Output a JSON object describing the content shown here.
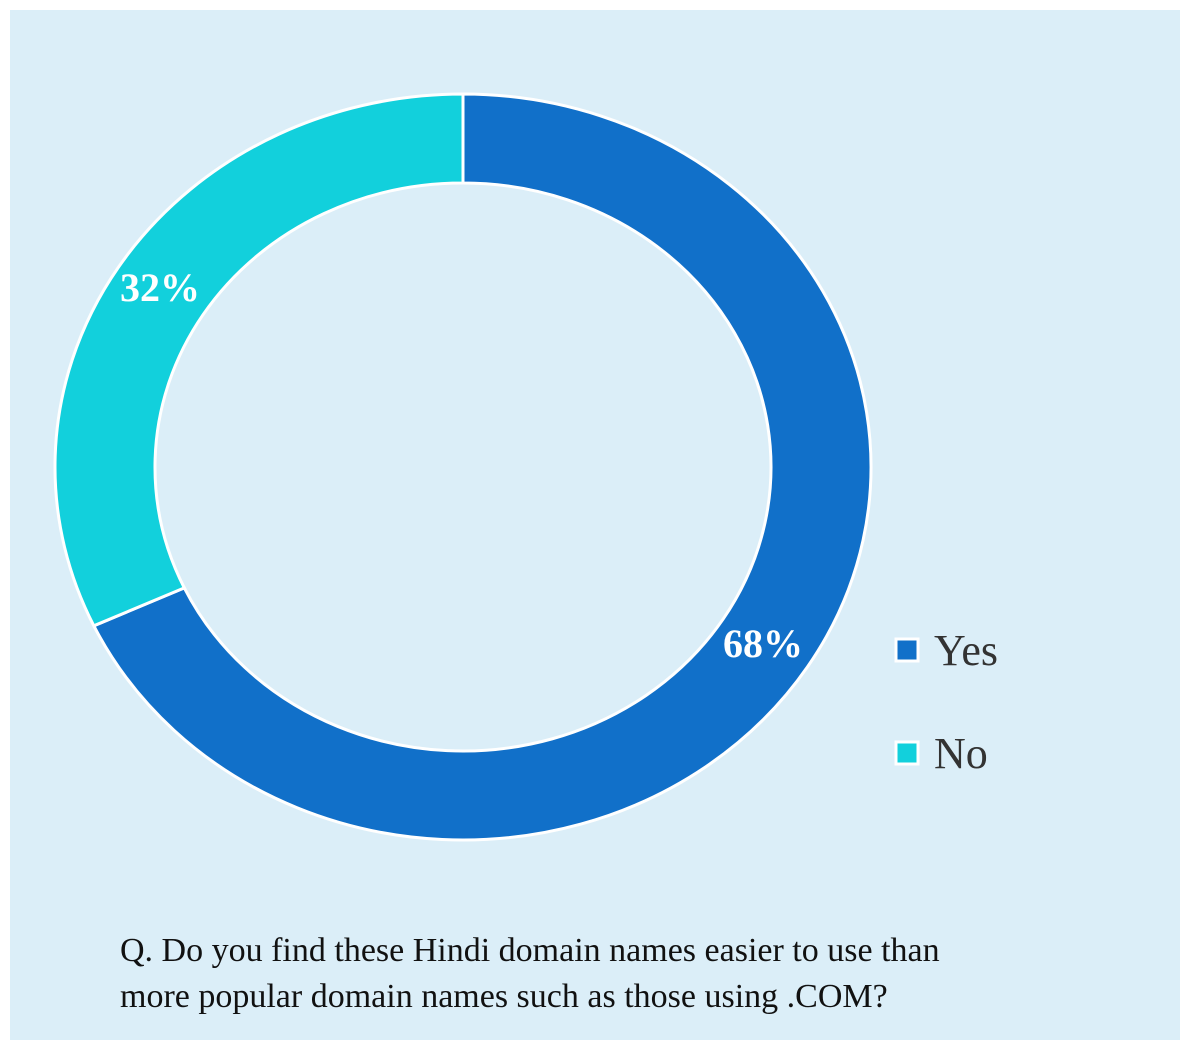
{
  "chart_data": {
    "type": "donut",
    "categories": [
      "Yes",
      "No"
    ],
    "series": [
      {
        "values": [
          68,
          32
        ],
        "value_labels": [
          "68%",
          "32%"
        ],
        "colors": [
          "#1170c9",
          "#12d0dc"
        ]
      }
    ],
    "legend": "right",
    "title": "Q. Do you find these Hindi domain names easier to use than\nmore popular domain names such as those using .COM?"
  }
}
